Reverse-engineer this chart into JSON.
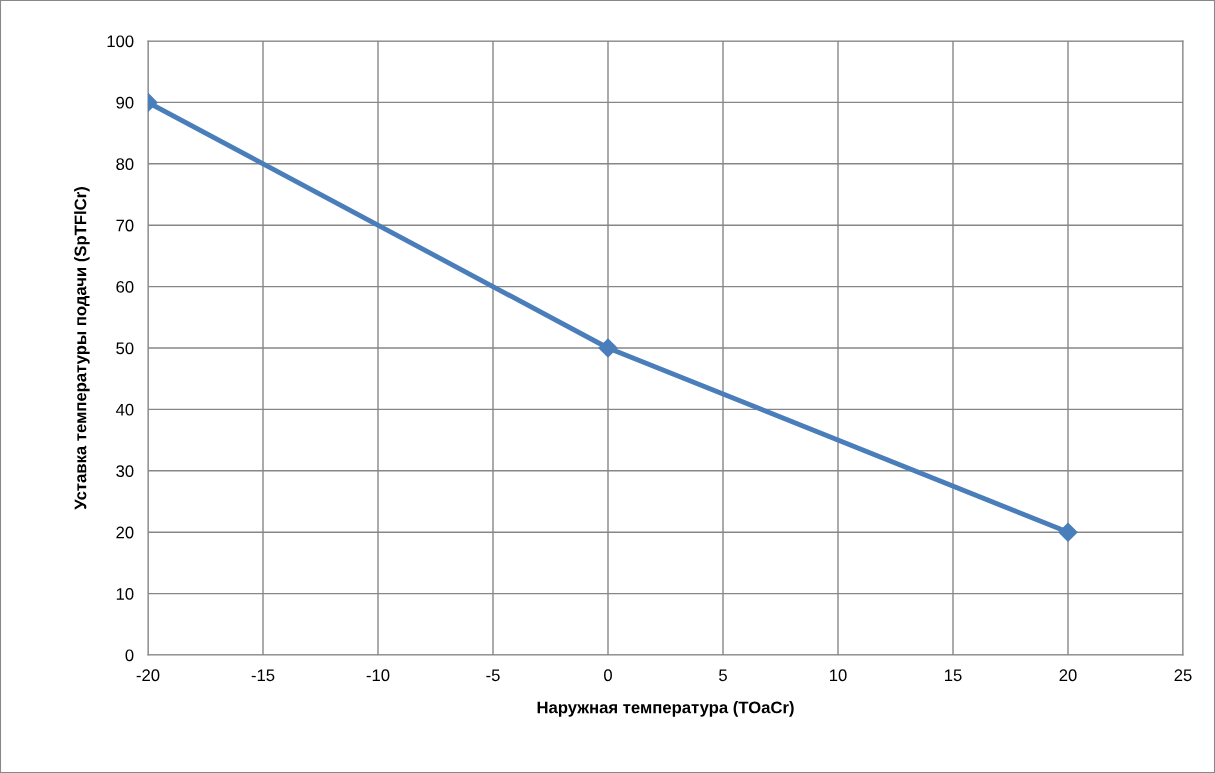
{
  "chart_data": {
    "type": "line",
    "xlabel": "Наружная температура (TOaCr)",
    "ylabel": "Уставка температуры подачи (SpTFlCr)",
    "series": [
      {
        "color": "#4a7ebb",
        "x": [
          -20,
          0,
          20
        ],
        "values": [
          90,
          50,
          20
        ]
      }
    ],
    "xlim": [
      -20,
      25
    ],
    "xticks": [
      -20,
      -15,
      -10,
      -5,
      0,
      5,
      10,
      15,
      20,
      25
    ],
    "ylim": [
      0,
      100
    ],
    "yticks": [
      0,
      10,
      20,
      30,
      40,
      50,
      60,
      70,
      80,
      90,
      100
    ],
    "grid": true,
    "marker": "diamond",
    "line_style": "solid"
  }
}
